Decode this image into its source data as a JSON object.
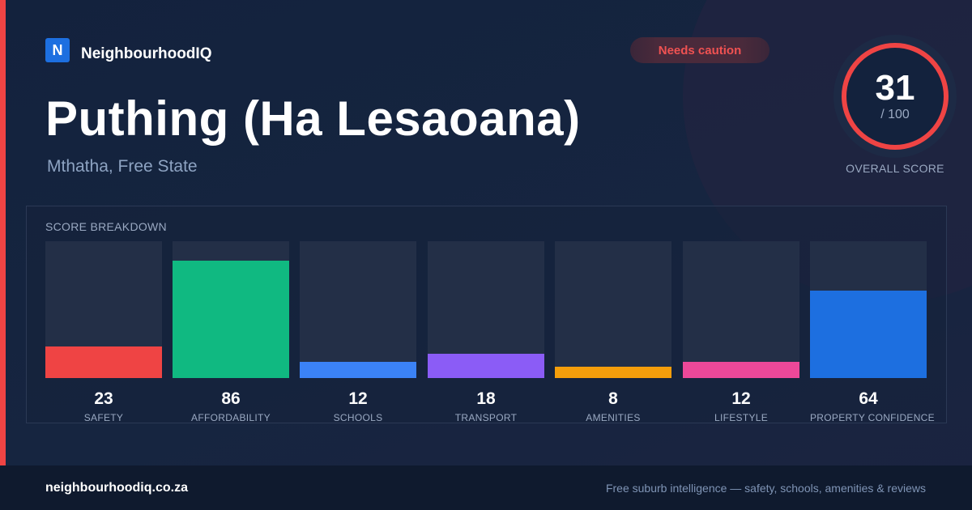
{
  "brand": {
    "logo_letter": "N",
    "name": "NeighbourhoodIQ",
    "color": "#1d6fe0"
  },
  "status": {
    "label": "Needs caution",
    "color": "#f05252"
  },
  "suburb": {
    "name": "Puthing (Ha Lesaoana)",
    "location": "Mthatha, Free State"
  },
  "overall": {
    "score": "31",
    "max_label": "/ 100",
    "label": "OVERALL SCORE",
    "ring_color": "#ef4444"
  },
  "breakdown": {
    "title": "SCORE BREAKDOWN",
    "max": 100,
    "categories": [
      {
        "label": "SAFETY",
        "value": 23,
        "color": "#ef4444"
      },
      {
        "label": "AFFORDABILITY",
        "value": 86,
        "color": "#10b981"
      },
      {
        "label": "SCHOOLS",
        "value": 12,
        "color": "#3b82f6"
      },
      {
        "label": "TRANSPORT",
        "value": 18,
        "color": "#8b5cf6"
      },
      {
        "label": "AMENITIES",
        "value": 8,
        "color": "#f59e0b"
      },
      {
        "label": "LIFESTYLE",
        "value": 12,
        "color": "#ec4899"
      },
      {
        "label": "PROPERTY CONFIDENCE",
        "value": 64,
        "color": "#1d6fe0"
      }
    ]
  },
  "footer": {
    "url": "neighbourhoodiq.co.za",
    "tagline": "Free suburb intelligence — safety, schools, amenities & reviews"
  }
}
